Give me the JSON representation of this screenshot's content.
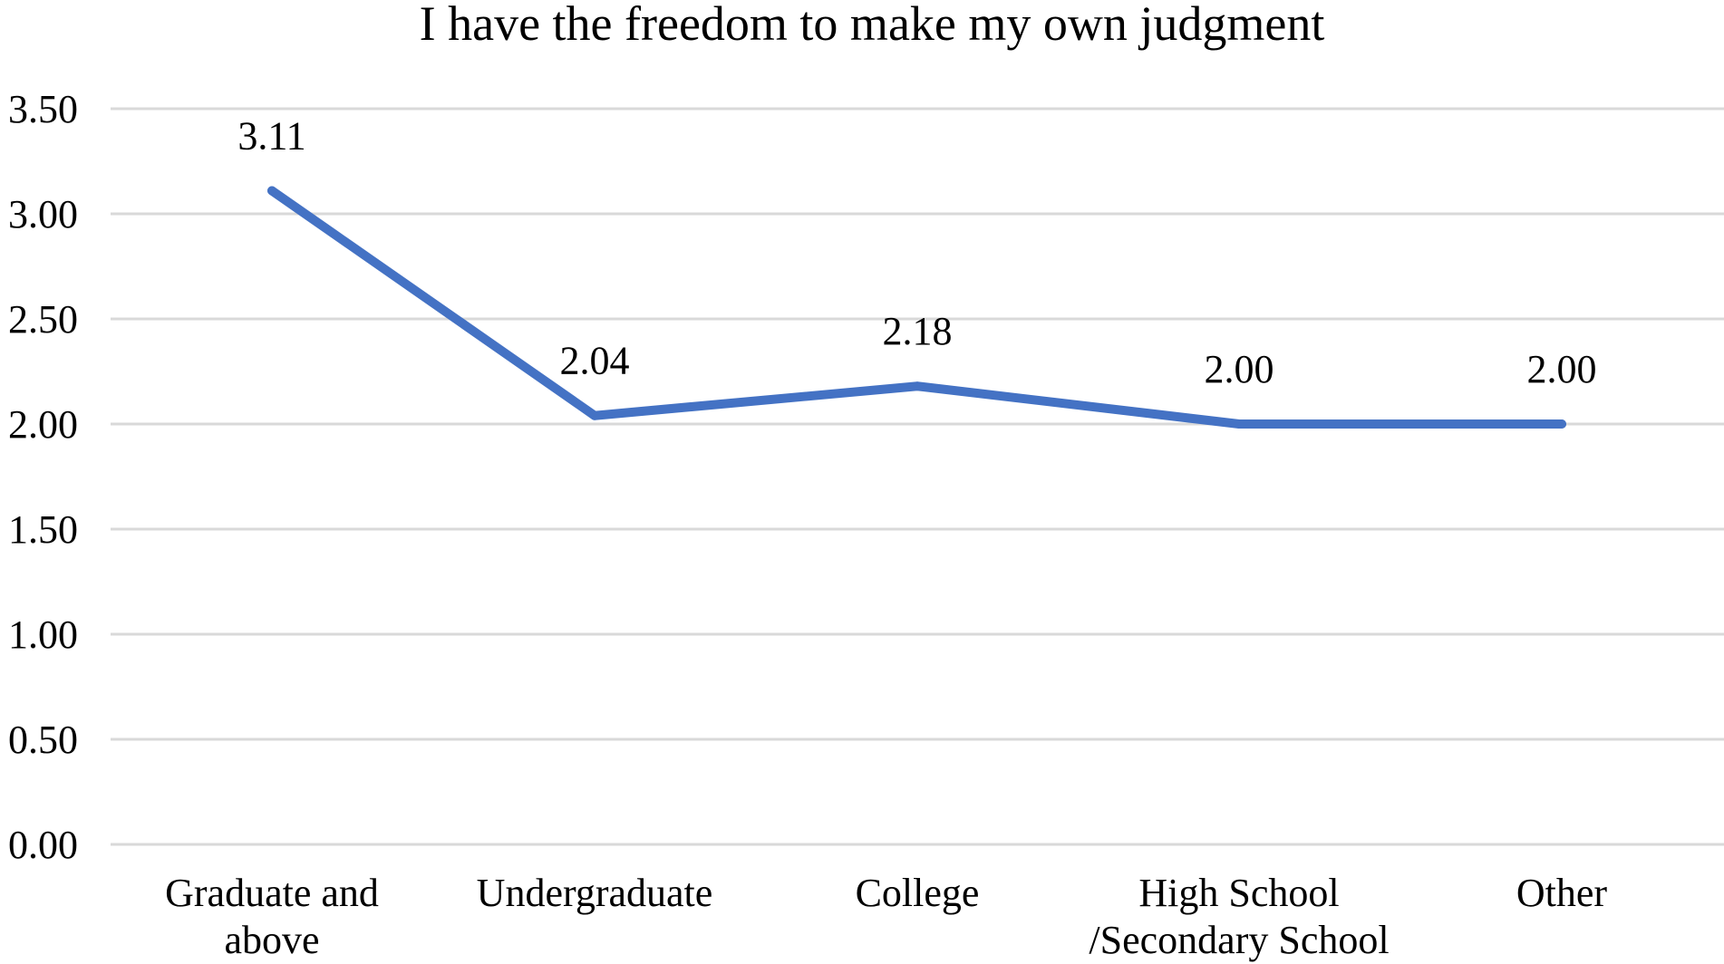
{
  "chart_data": {
    "type": "line",
    "title": "I have the freedom to make my own judgment",
    "xlabel": "",
    "ylabel": "",
    "ylim": [
      0,
      3.5
    ],
    "ytick_step": 0.5,
    "ytick_labels": [
      "0.00",
      "0.50",
      "1.00",
      "1.50",
      "2.00",
      "2.50",
      "3.00",
      "3.50"
    ],
    "grid": true,
    "legend": "none",
    "categories": [
      [
        "Graduate and",
        "above"
      ],
      [
        "Undergraduate"
      ],
      [
        "College"
      ],
      [
        "High School",
        "/Secondary School"
      ],
      [
        "Other"
      ]
    ],
    "series": [
      {
        "values": [
          3.11,
          2.04,
          2.18,
          2.0,
          2.0
        ],
        "data_labels": [
          "3.11",
          "2.04",
          "2.18",
          "2.00",
          "2.00"
        ],
        "color": "#4472c4"
      }
    ]
  }
}
